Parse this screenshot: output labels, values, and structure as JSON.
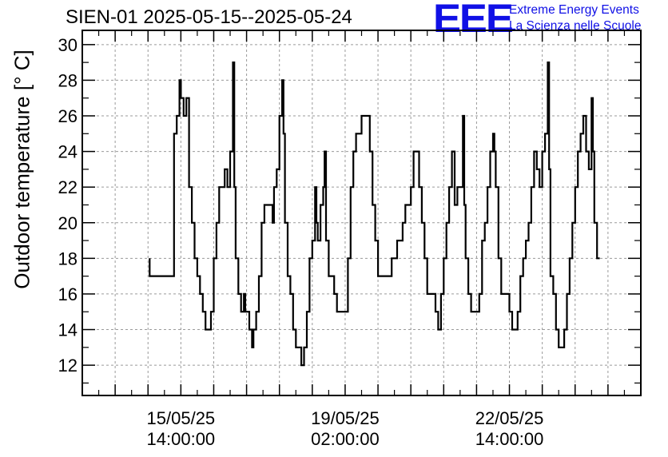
{
  "header": {
    "title": "SIEN-01 2025-05-15--2025-05-24",
    "logo": "EEE",
    "logo_line1": "Extreme Energy Events",
    "logo_line2": "La Scienza nelle Scuole"
  },
  "colors": {
    "logo": "#1010e6",
    "line": "#000000",
    "grid": "#9a9a9a"
  },
  "chart_data": {
    "type": "line",
    "title": "SIEN-01 2025-05-15--2025-05-24",
    "ylabel": "Outdoor temperature [° C]",
    "xlabel": "",
    "grid": true,
    "ylim": [
      10.3,
      30.8
    ],
    "xlim_hours_from_tick1": [
      -36,
      168
    ],
    "y_ticks": [
      12,
      14,
      16,
      18,
      20,
      22,
      24,
      26,
      28,
      30
    ],
    "x_ticks": [
      {
        "hours": 0,
        "date": "15/05/25",
        "time": "14:00:00"
      },
      {
        "hours": 60,
        "date": "19/05/25",
        "time": "02:00:00"
      },
      {
        "hours": 120,
        "date": "22/05/25",
        "time": "14:00:00"
      }
    ],
    "series": [
      {
        "values_hours": [
          [
            -11.4,
            18
          ],
          [
            -11.4,
            17
          ],
          [
            -2.5,
            17
          ],
          [
            -2.5,
            25
          ],
          [
            -1.5,
            25
          ],
          [
            -1.5,
            26
          ],
          [
            -0.5,
            26
          ],
          [
            -0.5,
            28
          ],
          [
            0,
            28
          ],
          [
            0,
            27
          ],
          [
            1,
            27
          ],
          [
            1,
            26
          ],
          [
            2,
            26
          ],
          [
            2,
            27
          ],
          [
            3,
            27
          ],
          [
            3,
            22
          ],
          [
            4,
            22
          ],
          [
            4,
            20
          ],
          [
            5,
            20
          ],
          [
            5,
            18
          ],
          [
            6,
            18
          ],
          [
            6,
            17
          ],
          [
            7,
            17
          ],
          [
            7,
            16
          ],
          [
            8,
            16
          ],
          [
            8,
            15
          ],
          [
            9,
            15
          ],
          [
            9,
            14
          ],
          [
            11,
            14
          ],
          [
            11,
            15
          ],
          [
            12,
            15
          ],
          [
            12,
            18
          ],
          [
            13,
            18
          ],
          [
            13,
            20
          ],
          [
            14,
            20
          ],
          [
            14,
            22
          ],
          [
            16,
            22
          ],
          [
            16,
            23
          ],
          [
            17,
            23
          ],
          [
            17,
            22
          ],
          [
            18,
            22
          ],
          [
            18,
            24
          ],
          [
            19,
            24
          ],
          [
            19,
            29
          ],
          [
            19.5,
            29
          ],
          [
            19.5,
            22
          ],
          [
            20,
            22
          ],
          [
            20,
            18
          ],
          [
            21,
            18
          ],
          [
            21,
            16
          ],
          [
            22,
            16
          ],
          [
            22,
            15
          ],
          [
            23,
            15
          ],
          [
            23,
            16
          ],
          [
            23.5,
            16
          ],
          [
            23.5,
            15
          ],
          [
            25,
            15
          ],
          [
            25,
            14
          ],
          [
            26,
            14
          ],
          [
            26,
            13
          ],
          [
            26.5,
            13
          ],
          [
            26.5,
            14
          ],
          [
            27.5,
            14
          ],
          [
            27.5,
            15
          ],
          [
            28.5,
            15
          ],
          [
            28.5,
            17
          ],
          [
            29.5,
            17
          ],
          [
            29.5,
            20
          ],
          [
            30.5,
            20
          ],
          [
            30.5,
            21
          ],
          [
            33.5,
            21
          ],
          [
            33.5,
            20
          ],
          [
            34,
            20
          ],
          [
            34,
            22
          ],
          [
            35,
            22
          ],
          [
            35,
            23
          ],
          [
            36,
            23
          ],
          [
            36,
            26
          ],
          [
            37,
            26
          ],
          [
            37,
            28
          ],
          [
            37.5,
            28
          ],
          [
            37.5,
            25
          ],
          [
            38,
            25
          ],
          [
            38,
            20
          ],
          [
            39,
            20
          ],
          [
            39,
            17
          ],
          [
            40,
            17
          ],
          [
            40,
            16
          ],
          [
            41,
            16
          ],
          [
            41,
            14
          ],
          [
            42,
            14
          ],
          [
            42,
            13
          ],
          [
            44,
            13
          ],
          [
            44,
            12
          ],
          [
            45,
            12
          ],
          [
            45,
            13
          ],
          [
            46,
            13
          ],
          [
            46,
            15
          ],
          [
            47,
            15
          ],
          [
            47,
            18
          ],
          [
            48,
            18
          ],
          [
            48,
            19
          ],
          [
            49,
            19
          ],
          [
            49,
            22
          ],
          [
            49.5,
            22
          ],
          [
            49.5,
            20
          ],
          [
            50,
            20
          ],
          [
            50,
            19
          ],
          [
            51,
            19
          ],
          [
            51,
            21
          ],
          [
            52,
            21
          ],
          [
            52,
            22
          ],
          [
            52.5,
            22
          ],
          [
            52.5,
            24
          ],
          [
            53,
            24
          ],
          [
            53,
            19
          ],
          [
            54,
            19
          ],
          [
            54,
            17
          ],
          [
            56,
            17
          ],
          [
            56,
            16
          ],
          [
            57,
            16
          ],
          [
            57,
            15
          ],
          [
            61,
            15
          ],
          [
            61,
            18
          ],
          [
            62,
            18
          ],
          [
            62,
            22
          ],
          [
            63,
            22
          ],
          [
            63,
            24
          ],
          [
            64,
            24
          ],
          [
            64,
            25
          ],
          [
            66,
            25
          ],
          [
            66,
            26
          ],
          [
            69,
            26
          ],
          [
            69,
            24
          ],
          [
            70,
            24
          ],
          [
            70,
            21
          ],
          [
            71,
            21
          ],
          [
            71,
            19
          ],
          [
            72,
            19
          ],
          [
            72,
            17
          ],
          [
            77,
            17
          ],
          [
            77,
            18
          ],
          [
            79,
            18
          ],
          [
            79,
            19
          ],
          [
            81,
            19
          ],
          [
            81,
            20
          ],
          [
            82,
            20
          ],
          [
            82,
            21
          ],
          [
            84,
            21
          ],
          [
            84,
            22
          ],
          [
            85,
            22
          ],
          [
            85,
            24
          ],
          [
            87,
            24
          ],
          [
            87,
            22
          ],
          [
            88,
            22
          ],
          [
            88,
            20
          ],
          [
            89,
            20
          ],
          [
            89,
            18
          ],
          [
            90,
            18
          ],
          [
            90,
            16
          ],
          [
            93,
            16
          ],
          [
            93,
            15
          ],
          [
            94,
            15
          ],
          [
            94,
            14
          ],
          [
            95,
            14
          ],
          [
            95,
            16
          ],
          [
            96,
            16
          ],
          [
            96,
            18
          ],
          [
            97,
            18
          ],
          [
            97,
            20
          ],
          [
            98,
            20
          ],
          [
            98,
            22
          ],
          [
            99,
            22
          ],
          [
            99,
            24
          ],
          [
            100,
            24
          ],
          [
            100,
            21
          ],
          [
            101,
            21
          ],
          [
            101,
            22
          ],
          [
            103,
            22
          ],
          [
            103,
            26
          ],
          [
            103.5,
            26
          ],
          [
            103.5,
            21
          ],
          [
            104,
            21
          ],
          [
            104,
            18
          ],
          [
            105,
            18
          ],
          [
            105,
            16
          ],
          [
            106,
            16
          ],
          [
            106,
            15
          ],
          [
            109,
            15
          ],
          [
            109,
            16
          ],
          [
            110,
            16
          ],
          [
            110,
            19
          ],
          [
            111,
            19
          ],
          [
            111,
            20
          ],
          [
            112,
            20
          ],
          [
            112,
            22
          ],
          [
            113,
            22
          ],
          [
            113,
            24
          ],
          [
            114,
            24
          ],
          [
            114,
            25
          ],
          [
            114.5,
            25
          ],
          [
            114.5,
            24
          ],
          [
            115,
            24
          ],
          [
            115,
            22
          ],
          [
            116,
            22
          ],
          [
            116,
            18
          ],
          [
            117,
            18
          ],
          [
            117,
            16
          ],
          [
            120,
            16
          ],
          [
            120,
            15
          ],
          [
            121,
            15
          ],
          [
            121,
            14
          ],
          [
            123,
            14
          ],
          [
            123,
            15
          ],
          [
            124,
            15
          ],
          [
            124,
            17
          ],
          [
            125,
            17
          ],
          [
            125,
            18
          ],
          [
            126,
            18
          ],
          [
            126,
            19
          ],
          [
            127,
            19
          ],
          [
            127,
            20
          ],
          [
            128,
            20
          ],
          [
            128,
            22
          ],
          [
            129,
            22
          ],
          [
            129,
            24
          ],
          [
            130,
            24
          ],
          [
            130,
            23
          ],
          [
            131,
            23
          ],
          [
            131,
            22
          ],
          [
            132,
            22
          ],
          [
            132,
            24
          ],
          [
            133,
            24
          ],
          [
            133,
            25
          ],
          [
            134,
            25
          ],
          [
            134,
            29
          ],
          [
            134.5,
            29
          ],
          [
            134.5,
            23
          ],
          [
            135,
            23
          ],
          [
            135,
            17
          ],
          [
            136,
            17
          ],
          [
            136,
            16
          ],
          [
            137,
            16
          ],
          [
            137,
            14
          ],
          [
            138,
            14
          ],
          [
            138,
            13
          ],
          [
            140,
            13
          ],
          [
            140,
            14
          ],
          [
            141,
            14
          ],
          [
            141,
            16
          ],
          [
            142,
            16
          ],
          [
            142,
            18
          ],
          [
            143,
            18
          ],
          [
            143,
            20
          ],
          [
            144,
            20
          ],
          [
            144,
            22
          ],
          [
            145,
            22
          ],
          [
            145,
            24
          ],
          [
            146,
            24
          ],
          [
            146,
            25
          ],
          [
            147,
            25
          ],
          [
            147,
            26
          ],
          [
            148,
            26
          ],
          [
            148,
            24
          ],
          [
            149,
            24
          ],
          [
            149,
            23
          ],
          [
            150,
            23
          ],
          [
            150,
            27
          ],
          [
            150.5,
            27
          ],
          [
            150.5,
            24
          ],
          [
            151,
            24
          ],
          [
            151,
            20
          ],
          [
            152,
            20
          ],
          [
            152,
            18
          ],
          [
            153,
            18
          ]
        ]
      }
    ]
  }
}
